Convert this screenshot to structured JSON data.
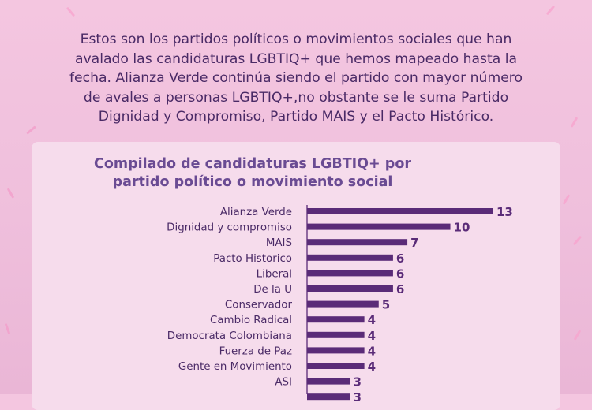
{
  "intro": {
    "line1": "Estos son los partidos políticos o movimientos sociales que han",
    "line2": "avalado las candidaturas LGBTIQ+ que hemos mapeado hasta la",
    "line3": "fecha. Alianza Verde continúa siendo el partido con mayor número",
    "line4": "de avales a personas LGBTIQ+,no obstante se le suma Partido",
    "line5": "Dignidad y Compromiso, Partido MAIS y el Pacto Histórico."
  },
  "chart_data": {
    "type": "bar",
    "orientation": "horizontal",
    "title_line1": "Compilado de candidaturas LGBTIQ+ por",
    "title_line2": "partido político o movimiento social",
    "categories": [
      "Alianza Verde",
      "Dignidad y compromiso",
      "MAIS",
      "Pacto Historico",
      "Liberal",
      "De la U",
      "Conservador",
      "Cambio Radical",
      "Democrata Colombiana",
      "Fuerza de Paz",
      "Gente en Movimiento",
      "ASI"
    ],
    "values": [
      13,
      10,
      7,
      6,
      6,
      6,
      5,
      4,
      4,
      4,
      4,
      3
    ],
    "partial_next_value": "3",
    "bar_color": "#5a2b78",
    "xlim": [
      0,
      13
    ],
    "grid": false,
    "legend": "none"
  }
}
